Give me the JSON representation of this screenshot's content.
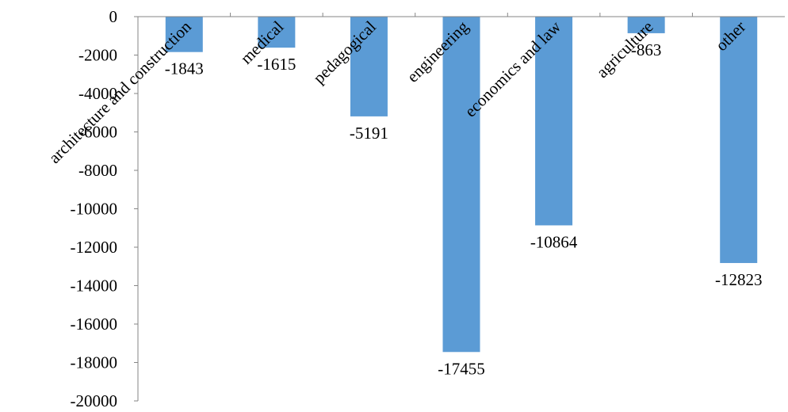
{
  "chart_data": {
    "type": "bar",
    "categories": [
      "architecture and construction",
      "medical",
      "pedagogical",
      "engineering",
      "economics and law",
      "agriculture",
      "other"
    ],
    "values": [
      -1843,
      -1615,
      -5191,
      -17455,
      -10864,
      -863,
      -12823
    ],
    "data_labels": [
      "-1843",
      "-1615",
      "-5191",
      "-17455",
      "-10864",
      "-863",
      "-12823"
    ],
    "ylim": [
      -20000,
      0
    ],
    "yticks": [
      0,
      -2000,
      -4000,
      -6000,
      -8000,
      -10000,
      -12000,
      -14000,
      -16000,
      -18000,
      -20000
    ],
    "ytick_labels": [
      "0",
      "-2000",
      "-4000",
      "-6000",
      "-8000",
      "-10000",
      "-12000",
      "-14000",
      "-16000",
      "-18000",
      "-20000"
    ],
    "bar_color": "#5B9BD5",
    "axis_color": "#868686",
    "grid": false,
    "legend": "none"
  }
}
